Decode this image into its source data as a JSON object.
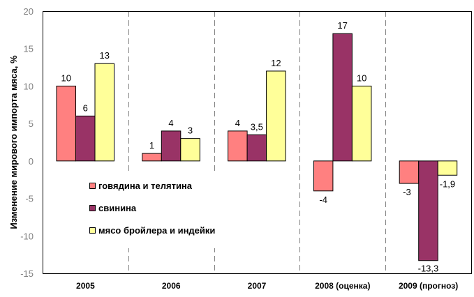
{
  "chart_data": {
    "type": "bar",
    "title": "",
    "xlabel": "",
    "ylabel": "Изменение мирового импорта  мяса, %",
    "ylim": [
      -15,
      20
    ],
    "yticks": [
      20,
      15,
      10,
      5,
      0,
      -5,
      -10,
      -15
    ],
    "categories": [
      "2005",
      "2006",
      "2007",
      "2008 (оценка)",
      "2009  (прогноз)"
    ],
    "series": [
      {
        "name": "говядина и телятина",
        "color": "#FF8080",
        "values": [
          10,
          1,
          4,
          -4,
          -3
        ],
        "labels": [
          "10",
          "1",
          "4",
          "-4",
          "-3"
        ]
      },
      {
        "name": "свинина",
        "color": "#993366",
        "values": [
          6,
          4,
          3.5,
          17,
          -13.3
        ],
        "labels": [
          "6",
          "4",
          "3,5",
          "17",
          "-13,3"
        ]
      },
      {
        "name": "мясо бройлера и индейки",
        "color": "#FFFF99",
        "values": [
          13,
          3,
          12,
          10,
          -1.9
        ],
        "labels": [
          "13",
          "3",
          "12",
          "10",
          "-1,9"
        ]
      }
    ],
    "legend_position": "center-left",
    "grid": false
  }
}
